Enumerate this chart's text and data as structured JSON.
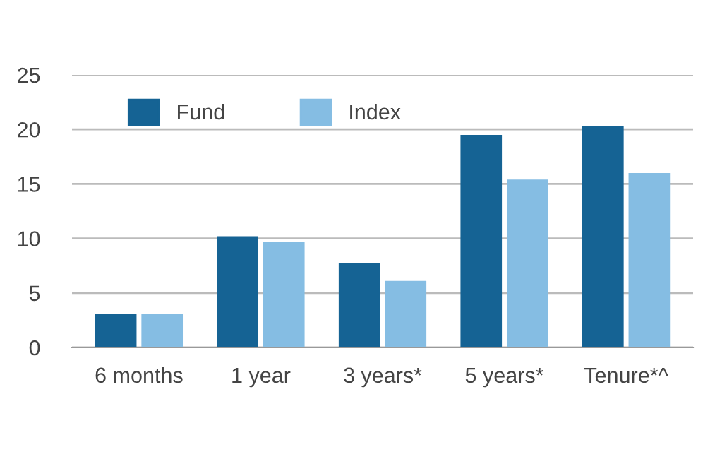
{
  "chart_data": {
    "type": "bar",
    "categories": [
      "6 months",
      "1 year",
      "3 years*",
      "5 years*",
      "Tenure*^"
    ],
    "series": [
      {
        "name": "Fund",
        "color": "#156394",
        "values": [
          3.1,
          10.2,
          7.7,
          19.5,
          20.3
        ]
      },
      {
        "name": "Index",
        "color": "#85bde3",
        "values": [
          3.1,
          9.7,
          6.1,
          15.4,
          16.0
        ]
      }
    ],
    "ylim": [
      0,
      25
    ],
    "yticks": [
      0,
      5,
      10,
      15,
      20,
      25
    ],
    "grid": "y",
    "legend": "top left"
  }
}
